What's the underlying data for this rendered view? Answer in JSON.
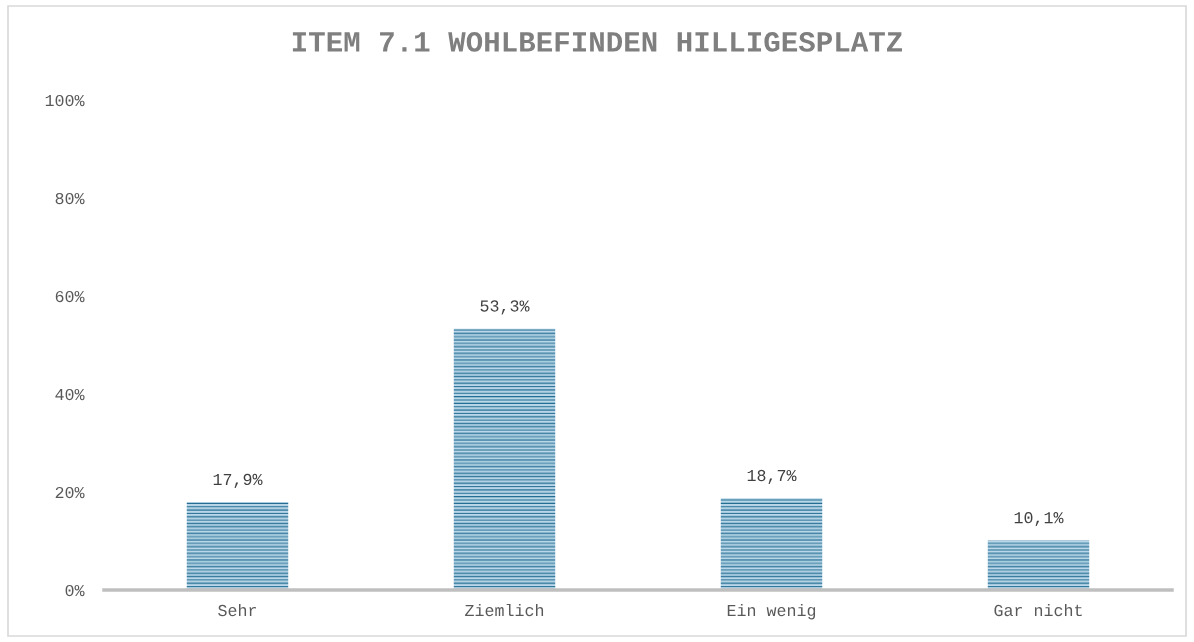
{
  "chart_data": {
    "type": "bar",
    "title": "ITEM 7.1 WOHLBEFINDEN HILLIGESPLATZ",
    "categories": [
      "Sehr",
      "Ziemlich",
      "Ein wenig",
      "Gar nicht"
    ],
    "values": [
      17.9,
      53.3,
      18.7,
      10.1
    ],
    "value_labels": [
      "17,9%",
      "53,3%",
      "18,7%",
      "10,1%"
    ],
    "color": "#1f6a90",
    "ylim": [
      0,
      100
    ],
    "yticks": [
      {
        "value": 0,
        "label": "0%"
      },
      {
        "value": 20,
        "label": "20%"
      },
      {
        "value": 40,
        "label": "40%"
      },
      {
        "value": 60,
        "label": "60%"
      },
      {
        "value": 80,
        "label": "80%"
      },
      {
        "value": 100,
        "label": "100%"
      }
    ],
    "grid": false,
    "legend": false
  }
}
